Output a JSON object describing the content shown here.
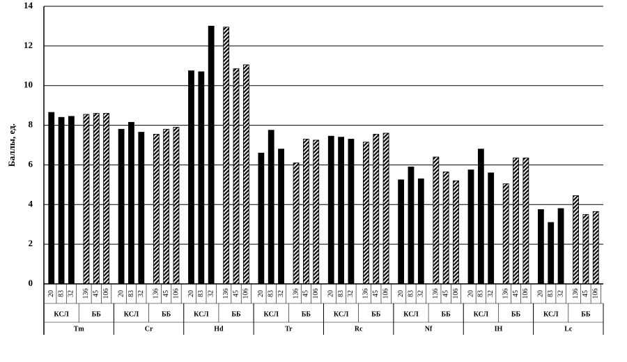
{
  "chart_data": {
    "type": "grouped-bar",
    "y_label": "Баллы, ед.",
    "ylim": [
      0,
      14
    ],
    "yticks": [
      0,
      2,
      4,
      6,
      8,
      10,
      12,
      14
    ],
    "grid": true,
    "groups": [
      {
        "label": "Tm",
        "subgroups": [
          {
            "label": "КСЛ",
            "pattern": "solid",
            "categories": [
              "20",
              "83",
              "32"
            ],
            "values": [
              8.65,
              8.4,
              8.45
            ]
          },
          {
            "label": "ББ",
            "pattern": "hatch",
            "categories": [
              "136",
              "45",
              "106"
            ],
            "values": [
              8.55,
              8.6,
              8.6
            ]
          }
        ]
      },
      {
        "label": "Cr",
        "subgroups": [
          {
            "label": "КСЛ",
            "pattern": "solid",
            "categories": [
              "20",
              "83",
              "32"
            ],
            "values": [
              7.8,
              8.15,
              7.65
            ]
          },
          {
            "label": "ББ",
            "pattern": "hatch",
            "categories": [
              "136",
              "45",
              "106"
            ],
            "values": [
              7.55,
              7.8,
              7.9
            ]
          }
        ]
      },
      {
        "label": "Hd",
        "subgroups": [
          {
            "label": "КСЛ",
            "pattern": "solid",
            "categories": [
              "20",
              "83",
              "32"
            ],
            "values": [
              10.75,
              10.7,
              13.0
            ]
          },
          {
            "label": "ББ",
            "pattern": "hatch",
            "categories": [
              "136",
              "45",
              "106"
            ],
            "values": [
              12.95,
              10.85,
              11.05
            ]
          }
        ]
      },
      {
        "label": "Tr",
        "subgroups": [
          {
            "label": "КСЛ",
            "pattern": "solid",
            "categories": [
              "20",
              "83",
              "32"
            ],
            "values": [
              6.6,
              7.75,
              6.8
            ]
          },
          {
            "label": "ББ",
            "pattern": "hatch",
            "categories": [
              "136",
              "45",
              "106"
            ],
            "values": [
              6.1,
              7.3,
              7.25
            ]
          }
        ]
      },
      {
        "label": "Rc",
        "subgroups": [
          {
            "label": "КСЛ",
            "pattern": "solid",
            "categories": [
              "20",
              "83",
              "32"
            ],
            "values": [
              7.45,
              7.4,
              7.3
            ]
          },
          {
            "label": "ББ",
            "pattern": "hatch",
            "categories": [
              "136",
              "45",
              "106"
            ],
            "values": [
              7.15,
              7.55,
              7.6
            ]
          }
        ]
      },
      {
        "label": "Nf",
        "subgroups": [
          {
            "label": "КСЛ",
            "pattern": "solid",
            "categories": [
              "20",
              "83",
              "32"
            ],
            "values": [
              5.25,
              5.9,
              5.3
            ]
          },
          {
            "label": "ББ",
            "pattern": "hatch",
            "categories": [
              "136",
              "45",
              "106"
            ],
            "values": [
              6.4,
              5.65,
              5.2
            ]
          }
        ]
      },
      {
        "label": "IH",
        "subgroups": [
          {
            "label": "КСЛ",
            "pattern": "solid",
            "categories": [
              "20",
              "83",
              "32"
            ],
            "values": [
              5.75,
              6.8,
              5.6
            ]
          },
          {
            "label": "ББ",
            "pattern": "hatch",
            "categories": [
              "136",
              "45",
              "106"
            ],
            "values": [
              5.05,
              6.35,
              6.35
            ]
          }
        ]
      },
      {
        "label": "Lc",
        "subgroups": [
          {
            "label": "КСЛ",
            "pattern": "solid",
            "categories": [
              "20",
              "83",
              "32"
            ],
            "values": [
              3.75,
              3.1,
              3.8
            ]
          },
          {
            "label": "ББ",
            "pattern": "hatch",
            "categories": [
              "136",
              "45",
              "106"
            ],
            "values": [
              4.45,
              3.5,
              3.65
            ]
          }
        ]
      }
    ]
  }
}
